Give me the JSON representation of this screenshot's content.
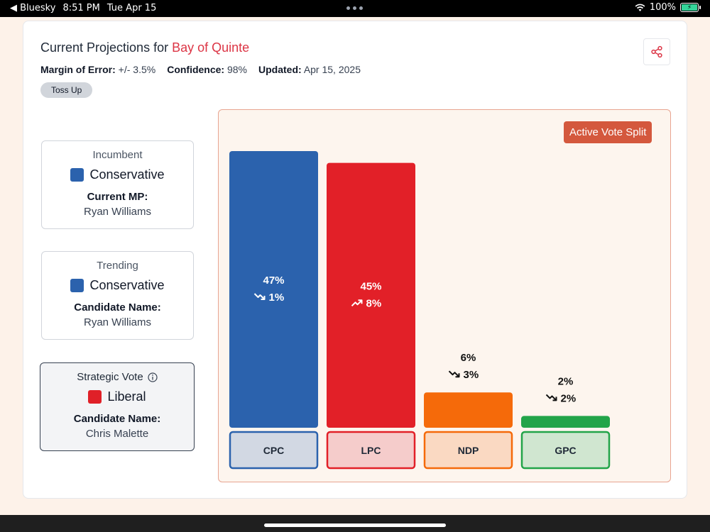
{
  "statusbar": {
    "back_app": "Bluesky",
    "time": "8:51 PM",
    "date": "Tue Apr 15",
    "battery": "100%"
  },
  "header": {
    "title_prefix": "Current Projections for ",
    "riding": "Bay of Quinte",
    "margin_label": "Margin of Error:",
    "margin_value": "+/- 3.5%",
    "confidence_label": "Confidence:",
    "confidence_value": "98%",
    "updated_label": "Updated:",
    "updated_value": "Apr 15, 2025",
    "status_badge": "Toss Up"
  },
  "incumbent": {
    "label": "Incumbent",
    "party": "Conservative",
    "party_color": "#2b62ad",
    "sub_label": "Current MP:",
    "name": "Ryan Williams"
  },
  "trending": {
    "label": "Trending",
    "party": "Conservative",
    "party_color": "#2b62ad",
    "sub_label": "Candidate Name:",
    "name": "Ryan Williams"
  },
  "strategic": {
    "label": "Strategic Vote",
    "party": "Liberal",
    "party_color": "#e02028",
    "sub_label": "Candidate Name:",
    "name": "Chris Malette"
  },
  "chart_data": {
    "type": "bar",
    "title": "",
    "badge": "Active Vote Split",
    "categories": [
      "CPC",
      "LPC",
      "NDP",
      "GPC"
    ],
    "values": [
      47,
      45,
      6,
      2
    ],
    "value_labels": [
      "47%",
      "45%",
      "6%",
      "2%"
    ],
    "changes": [
      "1%",
      "8%",
      "3%",
      "2%"
    ],
    "change_directions": [
      "down",
      "up",
      "down",
      "down"
    ],
    "colors": [
      "#2b62ad",
      "#e22028",
      "#f56a0a",
      "#22a449"
    ],
    "label_bg_colors": [
      "#d2d8e3",
      "#f5cccb",
      "#fad9c2",
      "#d0e6d0"
    ],
    "ylim": [
      0,
      47
    ]
  }
}
